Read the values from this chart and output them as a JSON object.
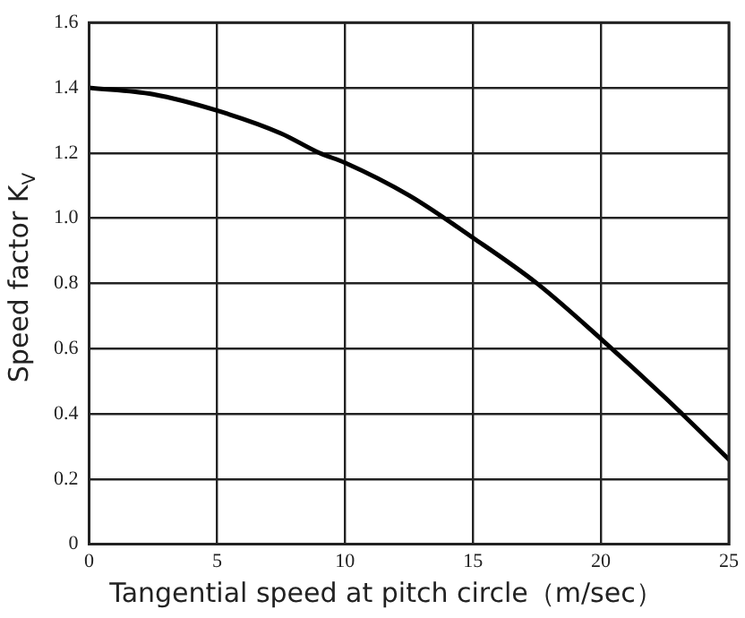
{
  "chart_data": {
    "type": "line",
    "xlabel": "Tangential speed at pitch circle（m/sec）",
    "ylabel": "Speed factor  K$_{V}$",
    "x": [
      0,
      2.5,
      5,
      7.5,
      9,
      10,
      12.5,
      15,
      17.5,
      20,
      22.5,
      25
    ],
    "series": [
      {
        "color": "#000000",
        "values": [
          1.4,
          1.38,
          1.33,
          1.26,
          1.2,
          1.17,
          1.07,
          0.94,
          0.8,
          0.63,
          0.45,
          0.26
        ]
      }
    ],
    "xlim": [
      0,
      25
    ],
    "xticks": [
      0,
      5,
      10,
      15,
      20,
      25
    ],
    "ylim": [
      0,
      1.6
    ],
    "yticks": [
      0,
      0.2,
      0.4,
      0.6,
      0.8,
      {
        "value": 1,
        "label": "1.0"
      },
      1.2,
      1.4,
      1.6
    ],
    "grid": true,
    "legend": false,
    "marker": "none",
    "line_style": "solid"
  }
}
